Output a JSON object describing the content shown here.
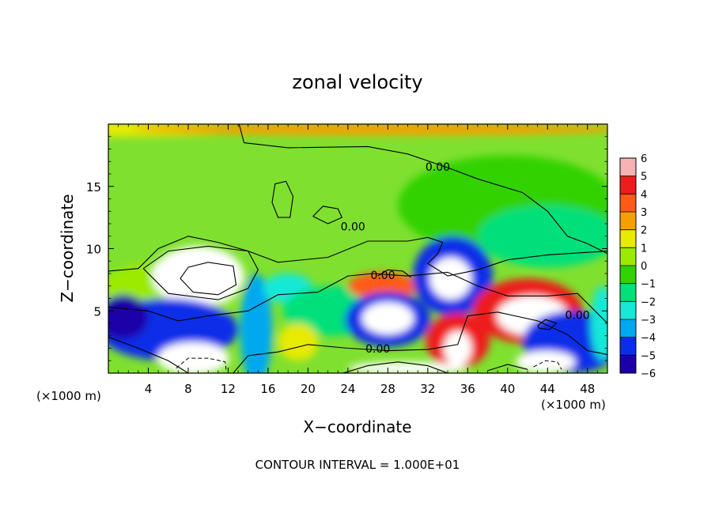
{
  "chart_data": {
    "type": "heatmap",
    "title": "zonal velocity",
    "xlabel": "X−coordinate",
    "ylabel": "Z−coordinate",
    "x_unit_label_left": "(×1000 m)",
    "x_unit_label_right": "(×1000 m)",
    "footer": "CONTOUR INTERVAL = 1.000E+01",
    "xlim": [
      0,
      50
    ],
    "ylim": [
      0,
      20
    ],
    "x_ticks": [
      4,
      8,
      12,
      16,
      20,
      24,
      28,
      32,
      36,
      40,
      44,
      48
    ],
    "y_ticks": [
      5,
      10,
      15
    ],
    "colorbar": {
      "levels": [
        6,
        5,
        4,
        3,
        2,
        1,
        0,
        -1,
        -2,
        -3,
        -4,
        -5,
        -6
      ],
      "colors": [
        "#f7b3b3",
        "#ee1c1c",
        "#ff5a16",
        "#f5a000",
        "#e8ea00",
        "#9bea00",
        "#32d200",
        "#00e07a",
        "#18e8d8",
        "#00a8f0",
        "#0a2ee8",
        "#1a00a8"
      ],
      "out_of_range_color": "#ffffff"
    },
    "contour_labels": [
      {
        "text": "0.00",
        "x": 33,
        "y": 16.5
      },
      {
        "text": "0.00",
        "x": 24.5,
        "y": 11.7
      },
      {
        "text": "0.00",
        "x": 27.5,
        "y": 7.8
      },
      {
        "text": "0.00",
        "x": 27,
        "y": 1.9
      },
      {
        "text": "0.00",
        "x": 47,
        "y": 4.6
      }
    ],
    "regions": [
      {
        "value": -0.5,
        "x": 40,
        "y": 13.5,
        "rx": 11,
        "ry": 4
      },
      {
        "value": -1.3,
        "x": 44,
        "y": 11,
        "rx": 7,
        "ry": 2.5
      },
      {
        "value": 1.8,
        "x": 2,
        "y": 19.6,
        "rx": 12,
        "ry": 0.6
      },
      {
        "value": 2.6,
        "x": 27.5,
        "y": 19.6,
        "rx": 25,
        "ry": 0.5
      },
      {
        "value": 0.6,
        "x": 6,
        "y": 6.5,
        "rx": 7,
        "ry": 2.5
      },
      {
        "value": 6.0,
        "x": 9,
        "y": 7.8,
        "rx": 4.6,
        "ry": 2.4
      },
      {
        "value": -4,
        "x": 6,
        "y": 3.5,
        "rx": 7,
        "ry": 2.5
      },
      {
        "value": 6.0,
        "x": 8.5,
        "y": 1.2,
        "rx": 3.6,
        "ry": 1.3
      },
      {
        "value": -3.5,
        "x": 14.8,
        "y": 3.5,
        "rx": 1.6,
        "ry": 4.5
      },
      {
        "value": -2.6,
        "x": 18,
        "y": 6.8,
        "rx": 2.5,
        "ry": 1.2
      },
      {
        "value": -1.4,
        "x": 22.5,
        "y": 5.0,
        "rx": 5,
        "ry": 2
      },
      {
        "value": 3.2,
        "x": 27.5,
        "y": 7.0,
        "rx": 3.5,
        "ry": 1.1
      },
      {
        "value": -4.0,
        "x": 28,
        "y": 4.3,
        "rx": 4.3,
        "ry": 2.2
      },
      {
        "value": 6.0,
        "x": 28,
        "y": 4.4,
        "rx": 2.6,
        "ry": 1.3
      },
      {
        "value": -4.2,
        "x": 34.5,
        "y": 7.8,
        "rx": 4,
        "ry": 3.2
      },
      {
        "value": 6.0,
        "x": 34.3,
        "y": 7.6,
        "rx": 2.1,
        "ry": 1.7
      },
      {
        "value": 4.5,
        "x": 35,
        "y": 2.6,
        "rx": 3.2,
        "ry": 2.2
      },
      {
        "value": 6.0,
        "x": 35,
        "y": 2.0,
        "rx": 1.4,
        "ry": 1.4
      },
      {
        "value": 4.5,
        "x": 42,
        "y": 5.0,
        "rx": 5.5,
        "ry": 2.6
      },
      {
        "value": 6.0,
        "x": 42.5,
        "y": 4.6,
        "rx": 3.6,
        "ry": 1.6
      },
      {
        "value": -4,
        "x": 46.5,
        "y": 2.5,
        "rx": 5,
        "ry": 2.5
      },
      {
        "value": 6.0,
        "x": 43.8,
        "y": 0.9,
        "rx": 3,
        "ry": 0.9
      },
      {
        "value": -2.5,
        "x": 49.5,
        "y": 4.0,
        "rx": 1.2,
        "ry": 3
      },
      {
        "value": 6.0,
        "x": 30,
        "y": 0.4,
        "rx": 6,
        "ry": 0.5
      },
      {
        "value": 2.0,
        "x": 19,
        "y": 2.5,
        "rx": 2,
        "ry": 1.5
      },
      {
        "value": -5.2,
        "x": 1.5,
        "y": 4.5,
        "rx": 2.5,
        "ry": 1.8
      }
    ]
  }
}
